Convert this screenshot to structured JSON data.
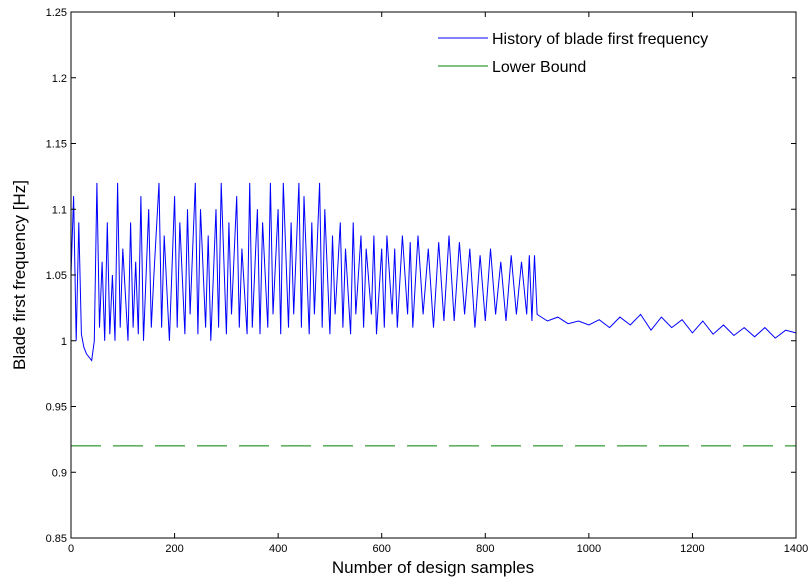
{
  "chart_data": {
    "type": "line",
    "title": "",
    "xlabel": "Number of design samples",
    "ylabel": "Blade first frequency [Hz]",
    "xlim": [
      0,
      1400
    ],
    "ylim": [
      0.85,
      1.25
    ],
    "x_ticks": [
      0,
      200,
      400,
      600,
      800,
      1000,
      1200,
      1400
    ],
    "y_ticks": [
      0.85,
      0.9,
      0.95,
      1,
      1.05,
      1.1,
      1.15,
      1.2,
      1.25
    ],
    "x_tick_labels": [
      "0",
      "200",
      "400",
      "600",
      "800",
      "1000",
      "1200",
      "1400"
    ],
    "y_tick_labels": [
      "0.85",
      "0.9",
      "0.95",
      "1",
      "1.05",
      "1.1",
      "1.15",
      "1.2",
      "1.25"
    ],
    "grid": false,
    "legend_position": "top-right",
    "series": [
      {
        "name": "History of blade first frequency",
        "color": "#0000ff",
        "style": "solid",
        "x": [
          0,
          5,
          10,
          15,
          20,
          25,
          30,
          40,
          45,
          50,
          55,
          60,
          65,
          70,
          75,
          80,
          85,
          90,
          95,
          100,
          110,
          115,
          120,
          125,
          130,
          135,
          140,
          150,
          155,
          160,
          170,
          175,
          180,
          190,
          200,
          205,
          210,
          220,
          225,
          230,
          240,
          245,
          250,
          260,
          265,
          270,
          280,
          285,
          290,
          300,
          305,
          310,
          320,
          325,
          330,
          340,
          345,
          350,
          360,
          365,
          370,
          380,
          385,
          390,
          400,
          405,
          410,
          420,
          425,
          430,
          440,
          445,
          450,
          460,
          465,
          470,
          480,
          485,
          490,
          500,
          505,
          510,
          520,
          525,
          530,
          540,
          545,
          550,
          560,
          565,
          570,
          580,
          585,
          590,
          600,
          605,
          610,
          620,
          625,
          630,
          640,
          650,
          655,
          660,
          670,
          680,
          690,
          700,
          710,
          720,
          730,
          740,
          750,
          760,
          770,
          780,
          790,
          800,
          810,
          820,
          830,
          840,
          850,
          860,
          870,
          880,
          885,
          890,
          895,
          900,
          920,
          940,
          960,
          980,
          1000,
          1020,
          1040,
          1060,
          1080,
          1100,
          1120,
          1140,
          1160,
          1180,
          1200,
          1220,
          1240,
          1260,
          1280,
          1300,
          1320,
          1340,
          1360,
          1380,
          1400
        ],
        "y": [
          1.05,
          1.11,
          1.0,
          1.09,
          1.005,
          0.995,
          0.99,
          0.985,
          1.0,
          1.12,
          1.01,
          1.06,
          1.0,
          1.09,
          1.005,
          1.05,
          1.0,
          1.12,
          1.01,
          1.07,
          1.0,
          1.09,
          1.01,
          1.06,
          1.005,
          1.11,
          1.0,
          1.1,
          1.01,
          1.05,
          1.12,
          1.01,
          1.08,
          1.0,
          1.11,
          1.01,
          1.09,
          1.005,
          1.1,
          1.02,
          1.12,
          1.005,
          1.1,
          1.01,
          1.08,
          1.0,
          1.1,
          1.01,
          1.12,
          1.005,
          1.09,
          1.02,
          1.11,
          1.01,
          1.07,
          1.005,
          1.12,
          1.01,
          1.1,
          1.005,
          1.09,
          1.01,
          1.12,
          1.02,
          1.1,
          1.005,
          1.12,
          1.01,
          1.09,
          1.02,
          1.12,
          1.01,
          1.11,
          1.005,
          1.09,
          1.02,
          1.12,
          1.01,
          1.1,
          1.005,
          1.08,
          1.02,
          1.09,
          1.01,
          1.07,
          1.005,
          1.09,
          1.02,
          1.08,
          1.01,
          1.07,
          1.02,
          1.08,
          1.005,
          1.07,
          1.01,
          1.08,
          1.02,
          1.07,
          1.01,
          1.08,
          1.02,
          1.075,
          1.01,
          1.08,
          1.02,
          1.07,
          1.01,
          1.075,
          1.015,
          1.08,
          1.015,
          1.075,
          1.02,
          1.07,
          1.01,
          1.065,
          1.015,
          1.07,
          1.02,
          1.06,
          1.015,
          1.065,
          1.02,
          1.06,
          1.02,
          1.065,
          1.015,
          1.065,
          1.02,
          1.015,
          1.018,
          1.013,
          1.015,
          1.012,
          1.016,
          1.01,
          1.018,
          1.012,
          1.02,
          1.008,
          1.018,
          1.01,
          1.016,
          1.006,
          1.015,
          1.005,
          1.012,
          1.004,
          1.01,
          1.003,
          1.01,
          1.002,
          1.008,
          1.006
        ]
      },
      {
        "name": "Lower Bound",
        "color": "#008000",
        "style": "dashed",
        "x": [
          0,
          1400
        ],
        "y": [
          0.92,
          0.92
        ]
      }
    ]
  }
}
